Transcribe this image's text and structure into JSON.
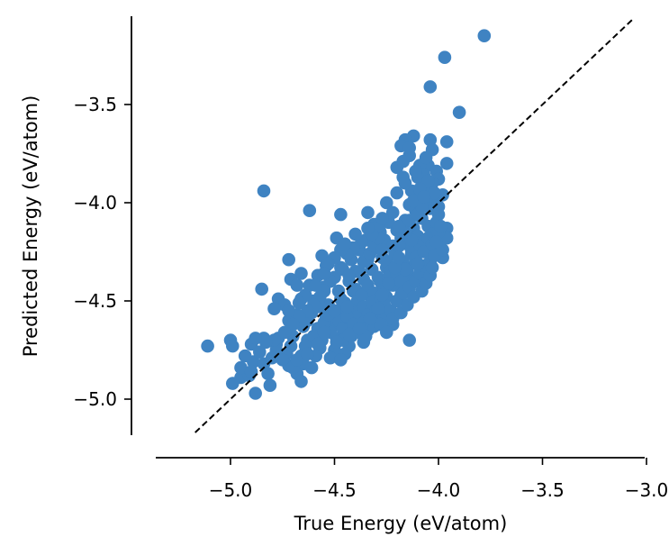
{
  "chart_data": {
    "type": "scatter",
    "title": "",
    "xlabel": "True Energy (eV/atom)",
    "ylabel": "Predicted Energy (eV/atom)",
    "xlim": [
      -5.35,
      -2.9
    ],
    "ylim": [
      -5.17,
      -3.05
    ],
    "xticks": [
      -5.0,
      -4.5,
      -4.0,
      -3.5,
      -3.0
    ],
    "xtick_labels": [
      "−5.0",
      "−4.5",
      "−4.0",
      "−3.5",
      "−3.0"
    ],
    "yticks": [
      -5.0,
      -4.5,
      -4.0,
      -3.5
    ],
    "ytick_labels": [
      "−5.0",
      "−4.5",
      "−4.0",
      "−3.5"
    ],
    "grid": false,
    "marker_color": "#3f83c2",
    "reference_line": {
      "style": "dashed",
      "color": "#000000",
      "x": [
        -5.17,
        -3.07
      ],
      "y": [
        -5.17,
        -3.07
      ]
    },
    "points": [
      [
        -3.78,
        -3.15
      ],
      [
        -3.97,
        -3.26
      ],
      [
        -4.04,
        -3.41
      ],
      [
        -3.9,
        -3.54
      ],
      [
        -3.96,
        -3.69
      ],
      [
        -4.04,
        -3.68
      ],
      [
        -4.12,
        -3.66
      ],
      [
        -4.16,
        -3.68
      ],
      [
        -4.18,
        -3.71
      ],
      [
        -4.03,
        -3.73
      ],
      [
        -4.14,
        -3.76
      ],
      [
        -4.2,
        -3.82
      ],
      [
        -3.96,
        -3.8
      ],
      [
        -4.05,
        -3.81
      ],
      [
        -4.09,
        -3.81
      ],
      [
        -4.01,
        -3.84
      ],
      [
        -4.07,
        -3.86
      ],
      [
        -4.17,
        -3.87
      ],
      [
        -4.1,
        -3.87
      ],
      [
        -4.0,
        -3.88
      ],
      [
        -4.03,
        -3.9
      ],
      [
        -4.06,
        -3.92
      ],
      [
        -4.13,
        -3.94
      ],
      [
        -4.2,
        -3.95
      ],
      [
        -3.98,
        -3.96
      ],
      [
        -4.09,
        -3.98
      ],
      [
        -4.02,
        -3.98
      ],
      [
        -4.06,
        -4.0
      ],
      [
        -4.14,
        -4.01
      ],
      [
        -4.25,
        -4.0
      ],
      [
        -4.04,
        -4.03
      ],
      [
        -4.11,
        -4.04
      ],
      [
        -4.22,
        -4.05
      ],
      [
        -4.34,
        -4.05
      ],
      [
        -4.47,
        -4.06
      ],
      [
        -4.62,
        -4.04
      ],
      [
        -4.84,
        -3.94
      ],
      [
        -4.0,
        -4.06
      ],
      [
        -4.08,
        -4.08
      ],
      [
        -4.16,
        -4.09
      ],
      [
        -4.24,
        -4.1
      ],
      [
        -4.31,
        -4.11
      ],
      [
        -4.05,
        -4.12
      ],
      [
        -4.12,
        -4.13
      ],
      [
        -4.2,
        -4.14
      ],
      [
        -4.28,
        -4.15
      ],
      [
        -3.96,
        -4.13
      ],
      [
        -4.03,
        -4.16
      ],
      [
        -4.1,
        -4.17
      ],
      [
        -4.18,
        -4.18
      ],
      [
        -4.26,
        -4.19
      ],
      [
        -4.35,
        -4.19
      ],
      [
        -4.49,
        -4.18
      ],
      [
        -4.08,
        -4.2
      ],
      [
        -4.15,
        -4.21
      ],
      [
        -4.22,
        -4.22
      ],
      [
        -4.3,
        -4.23
      ],
      [
        -4.38,
        -4.24
      ],
      [
        -4.0,
        -4.23
      ],
      [
        -4.06,
        -4.25
      ],
      [
        -4.13,
        -4.26
      ],
      [
        -4.2,
        -4.27
      ],
      [
        -4.27,
        -4.28
      ],
      [
        -4.34,
        -4.29
      ],
      [
        -4.42,
        -4.29
      ],
      [
        -4.56,
        -4.27
      ],
      [
        -4.72,
        -4.29
      ],
      [
        -3.98,
        -4.28
      ],
      [
        -4.04,
        -4.3
      ],
      [
        -4.11,
        -4.31
      ],
      [
        -4.18,
        -4.32
      ],
      [
        -4.25,
        -4.33
      ],
      [
        -4.32,
        -4.34
      ],
      [
        -4.4,
        -4.35
      ],
      [
        -4.47,
        -4.33
      ],
      [
        -4.54,
        -4.32
      ],
      [
        -4.08,
        -4.35
      ],
      [
        -4.15,
        -4.36
      ],
      [
        -4.22,
        -4.37
      ],
      [
        -4.29,
        -4.38
      ],
      [
        -4.36,
        -4.39
      ],
      [
        -4.43,
        -4.4
      ],
      [
        -4.5,
        -4.38
      ],
      [
        -4.58,
        -4.37
      ],
      [
        -4.66,
        -4.36
      ],
      [
        -4.71,
        -4.39
      ],
      [
        -4.13,
        -4.41
      ],
      [
        -4.2,
        -4.42
      ],
      [
        -4.27,
        -4.43
      ],
      [
        -4.34,
        -4.44
      ],
      [
        -4.41,
        -4.45
      ],
      [
        -4.48,
        -4.45
      ],
      [
        -4.55,
        -4.43
      ],
      [
        -4.62,
        -4.42
      ],
      [
        -4.68,
        -4.42
      ],
      [
        -4.85,
        -4.44
      ],
      [
        -4.77,
        -4.49
      ],
      [
        -4.18,
        -4.47
      ],
      [
        -4.25,
        -4.48
      ],
      [
        -4.32,
        -4.49
      ],
      [
        -4.39,
        -4.5
      ],
      [
        -4.46,
        -4.51
      ],
      [
        -4.53,
        -4.52
      ],
      [
        -4.6,
        -4.5
      ],
      [
        -4.66,
        -4.49
      ],
      [
        -4.74,
        -4.52
      ],
      [
        -4.79,
        -4.54
      ],
      [
        -4.26,
        -4.53
      ],
      [
        -4.33,
        -4.55
      ],
      [
        -4.4,
        -4.56
      ],
      [
        -4.47,
        -4.57
      ],
      [
        -4.54,
        -4.58
      ],
      [
        -4.61,
        -4.56
      ],
      [
        -4.68,
        -4.57
      ],
      [
        -4.3,
        -4.59
      ],
      [
        -4.37,
        -4.61
      ],
      [
        -4.44,
        -4.62
      ],
      [
        -4.51,
        -4.63
      ],
      [
        -4.58,
        -4.64
      ],
      [
        -4.65,
        -4.63
      ],
      [
        -4.72,
        -4.6
      ],
      [
        -4.22,
        -4.62
      ],
      [
        -4.42,
        -4.68
      ],
      [
        -4.49,
        -4.69
      ],
      [
        -4.56,
        -4.7
      ],
      [
        -4.63,
        -4.7
      ],
      [
        -4.7,
        -4.68
      ],
      [
        -4.84,
        -4.69
      ],
      [
        -4.77,
        -4.69
      ],
      [
        -4.14,
        -4.7
      ],
      [
        -4.36,
        -4.71
      ],
      [
        -4.43,
        -4.73
      ],
      [
        -4.5,
        -4.75
      ],
      [
        -4.57,
        -4.74
      ],
      [
        -4.64,
        -4.73
      ],
      [
        -4.71,
        -4.73
      ],
      [
        -4.78,
        -4.72
      ],
      [
        -4.9,
        -4.72
      ],
      [
        -5.0,
        -4.7
      ],
      [
        -5.11,
        -4.73
      ],
      [
        -4.99,
        -4.73
      ],
      [
        -4.45,
        -4.77
      ],
      [
        -4.52,
        -4.79
      ],
      [
        -4.59,
        -4.78
      ],
      [
        -4.66,
        -4.78
      ],
      [
        -4.73,
        -4.77
      ],
      [
        -4.8,
        -4.79
      ],
      [
        -4.47,
        -4.8
      ],
      [
        -4.65,
        -4.82
      ],
      [
        -4.72,
        -4.83
      ],
      [
        -4.61,
        -4.84
      ],
      [
        -4.89,
        -4.81
      ],
      [
        -4.84,
        -4.82
      ],
      [
        -4.68,
        -4.87
      ],
      [
        -4.82,
        -4.87
      ],
      [
        -4.95,
        -4.89
      ],
      [
        -4.91,
        -4.88
      ],
      [
        -4.66,
        -4.91
      ],
      [
        -4.81,
        -4.93
      ],
      [
        -4.99,
        -4.92
      ],
      [
        -4.88,
        -4.97
      ],
      [
        -4.38,
        -4.35
      ],
      [
        -4.36,
        -4.3
      ],
      [
        -4.33,
        -4.26
      ],
      [
        -4.31,
        -4.22
      ],
      [
        -4.29,
        -4.18
      ],
      [
        -4.27,
        -4.24
      ],
      [
        -4.25,
        -4.3
      ],
      [
        -4.23,
        -4.35
      ],
      [
        -4.21,
        -4.26
      ],
      [
        -4.19,
        -4.22
      ],
      [
        -4.17,
        -4.3
      ],
      [
        -4.15,
        -4.34
      ],
      [
        -4.13,
        -4.24
      ],
      [
        -4.11,
        -4.28
      ],
      [
        -4.09,
        -4.21
      ],
      [
        -4.07,
        -4.25
      ],
      [
        -4.05,
        -4.18
      ],
      [
        -4.03,
        -4.21
      ],
      [
        -4.01,
        -4.1
      ],
      [
        -4.4,
        -4.44
      ],
      [
        -4.37,
        -4.47
      ],
      [
        -4.34,
        -4.42
      ],
      [
        -4.31,
        -4.46
      ],
      [
        -4.28,
        -4.4
      ],
      [
        -4.26,
        -4.44
      ],
      [
        -4.24,
        -4.38
      ],
      [
        -4.22,
        -4.42
      ],
      [
        -4.2,
        -4.36
      ],
      [
        -4.18,
        -4.4
      ],
      [
        -4.16,
        -4.34
      ],
      [
        -4.45,
        -4.51
      ],
      [
        -4.42,
        -4.55
      ],
      [
        -4.39,
        -4.58
      ],
      [
        -4.36,
        -4.53
      ],
      [
        -4.34,
        -4.57
      ],
      [
        -4.32,
        -4.51
      ],
      [
        -4.3,
        -4.55
      ],
      [
        -4.28,
        -4.48
      ],
      [
        -4.26,
        -4.52
      ],
      [
        -4.48,
        -4.6
      ],
      [
        -4.46,
        -4.64
      ],
      [
        -4.44,
        -4.58
      ],
      [
        -4.41,
        -4.62
      ],
      [
        -4.39,
        -4.66
      ],
      [
        -4.36,
        -4.61
      ],
      [
        -4.34,
        -4.65
      ],
      [
        -4.52,
        -4.66
      ],
      [
        -4.55,
        -4.61
      ],
      [
        -4.53,
        -4.57
      ],
      [
        -4.57,
        -4.53
      ],
      [
        -4.5,
        -4.55
      ],
      [
        -4.47,
        -4.49
      ],
      [
        -4.44,
        -4.53
      ],
      [
        -4.6,
        -4.68
      ],
      [
        -4.58,
        -4.72
      ],
      [
        -4.55,
        -4.66
      ],
      [
        -4.63,
        -4.6
      ],
      [
        -4.46,
        -4.7
      ],
      [
        -4.35,
        -4.68
      ],
      [
        -4.31,
        -4.63
      ],
      [
        -4.26,
        -4.58
      ],
      [
        -4.23,
        -4.55
      ],
      [
        -4.2,
        -4.5
      ],
      [
        -4.17,
        -4.46
      ],
      [
        -4.14,
        -4.43
      ],
      [
        -4.11,
        -4.4
      ],
      [
        -4.09,
        -4.36
      ],
      [
        -4.07,
        -4.32
      ],
      [
        -4.04,
        -4.3
      ],
      [
        -4.02,
        -4.27
      ],
      [
        -3.98,
        -4.24
      ],
      [
        -3.96,
        -4.18
      ],
      [
        -4.0,
        -4.15
      ],
      [
        -4.29,
        -4.12
      ],
      [
        -4.32,
        -4.16
      ],
      [
        -4.37,
        -4.2
      ],
      [
        -4.41,
        -4.23
      ],
      [
        -4.44,
        -4.26
      ],
      [
        -4.47,
        -4.24
      ],
      [
        -4.5,
        -4.28
      ],
      [
        -4.53,
        -4.31
      ],
      [
        -4.46,
        -4.34
      ],
      [
        -4.43,
        -4.37
      ],
      [
        -4.52,
        -4.4
      ],
      [
        -4.55,
        -4.45
      ],
      [
        -4.57,
        -4.48
      ],
      [
        -4.6,
        -4.52
      ],
      [
        -4.63,
        -4.55
      ],
      [
        -4.67,
        -4.58
      ],
      [
        -4.7,
        -4.62
      ],
      [
        -4.74,
        -4.66
      ],
      [
        -4.78,
        -4.75
      ],
      [
        -4.75,
        -4.8
      ],
      [
        -4.7,
        -4.84
      ],
      [
        -4.68,
        -4.8
      ],
      [
        -4.63,
        -4.77
      ],
      [
        -4.22,
        -4.59
      ],
      [
        -4.18,
        -4.56
      ],
      [
        -4.28,
        -4.62
      ],
      [
        -4.25,
        -4.66
      ],
      [
        -4.15,
        -4.52
      ],
      [
        -4.12,
        -4.48
      ],
      [
        -4.08,
        -4.45
      ],
      [
        -4.06,
        -4.41
      ],
      [
        -4.04,
        -4.37
      ],
      [
        -4.1,
        -4.31
      ],
      [
        -4.13,
        -4.19
      ],
      [
        -4.16,
        -4.15
      ],
      [
        -4.19,
        -4.12
      ],
      [
        -4.14,
        -4.09
      ],
      [
        -4.1,
        -4.06
      ],
      [
        -4.08,
        -4.02
      ],
      [
        -4.12,
        -3.99
      ],
      [
        -4.02,
        -3.95
      ],
      [
        -4.05,
        -3.89
      ],
      [
        -4.09,
        -3.93
      ],
      [
        -4.16,
        -3.9
      ],
      [
        -4.27,
        -4.08
      ],
      [
        -4.34,
        -4.13
      ],
      [
        -4.4,
        -4.16
      ],
      [
        -4.45,
        -4.21
      ],
      [
        -4.55,
        -4.36
      ],
      [
        -4.59,
        -4.42
      ],
      [
        -4.64,
        -4.47
      ],
      [
        -4.67,
        -4.51
      ],
      [
        -4.72,
        -4.55
      ],
      [
        -4.79,
        -4.7
      ],
      [
        -4.86,
        -4.76
      ],
      [
        -4.83,
        -4.71
      ],
      [
        -4.88,
        -4.69
      ],
      [
        -4.93,
        -4.78
      ],
      [
        -4.95,
        -4.84
      ],
      [
        -4.9,
        -4.86
      ],
      [
        -4.49,
        -4.71
      ],
      [
        -4.43,
        -4.67
      ],
      [
        -4.38,
        -4.64
      ],
      [
        -4.33,
        -4.59
      ],
      [
        -4.29,
        -4.54
      ],
      [
        -4.27,
        -4.47
      ],
      [
        -4.24,
        -4.41
      ],
      [
        -4.21,
        -4.33
      ],
      [
        -4.19,
        -4.28
      ],
      [
        -4.03,
        -4.33
      ],
      [
        -4.01,
        -4.2
      ],
      [
        -3.99,
        -4.12
      ],
      [
        -4.0,
        -4.02
      ],
      [
        -4.07,
        -3.97
      ],
      [
        -4.11,
        -3.84
      ],
      [
        -4.17,
        -3.79
      ],
      [
        -4.14,
        -3.72
      ],
      [
        -4.06,
        -3.77
      ]
    ]
  }
}
